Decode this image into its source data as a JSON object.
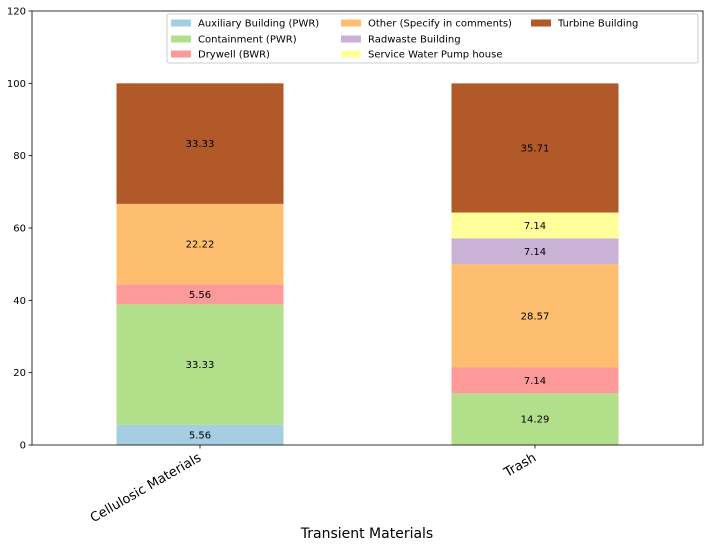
{
  "chart_data": {
    "type": "bar",
    "stacked": true,
    "title": "",
    "xlabel": "Transient Materials",
    "ylabel": "",
    "ylim": [
      0,
      120
    ],
    "yticks": [
      0,
      20,
      40,
      60,
      80,
      100,
      120
    ],
    "categories": [
      "Cellulosic Materials",
      "Trash"
    ],
    "x_tick_rotation_deg": 30,
    "legend_position": "top-right",
    "legend_columns": 3,
    "grid": false,
    "series": [
      {
        "name": "Auxiliary Building (PWR)",
        "color": "#a6cee3",
        "values": [
          5.56,
          0
        ]
      },
      {
        "name": "Containment (PWR)",
        "color": "#b2df8a",
        "values": [
          33.33,
          14.29
        ]
      },
      {
        "name": "Drywell (BWR)",
        "color": "#fb9a99",
        "values": [
          5.56,
          7.14
        ]
      },
      {
        "name": "Other (Specify in comments)",
        "color": "#fdbf6f",
        "values": [
          22.22,
          28.57
        ]
      },
      {
        "name": "Radwaste Building",
        "color": "#cab2d6",
        "values": [
          0,
          7.14
        ]
      },
      {
        "name": "Service Water Pump house",
        "color": "#ffff99",
        "values": [
          0,
          7.14
        ]
      },
      {
        "name": "Turbine Building",
        "color": "#b15928",
        "values": [
          33.33,
          35.71
        ]
      }
    ],
    "value_labels": [
      [
        "5.56",
        ""
      ],
      [
        "33.33",
        "14.29"
      ],
      [
        "5.56",
        "7.14"
      ],
      [
        "22.22",
        "28.57"
      ],
      [
        "",
        "7.14"
      ],
      [
        "",
        "7.14"
      ],
      [
        "33.33",
        "35.71"
      ]
    ]
  }
}
